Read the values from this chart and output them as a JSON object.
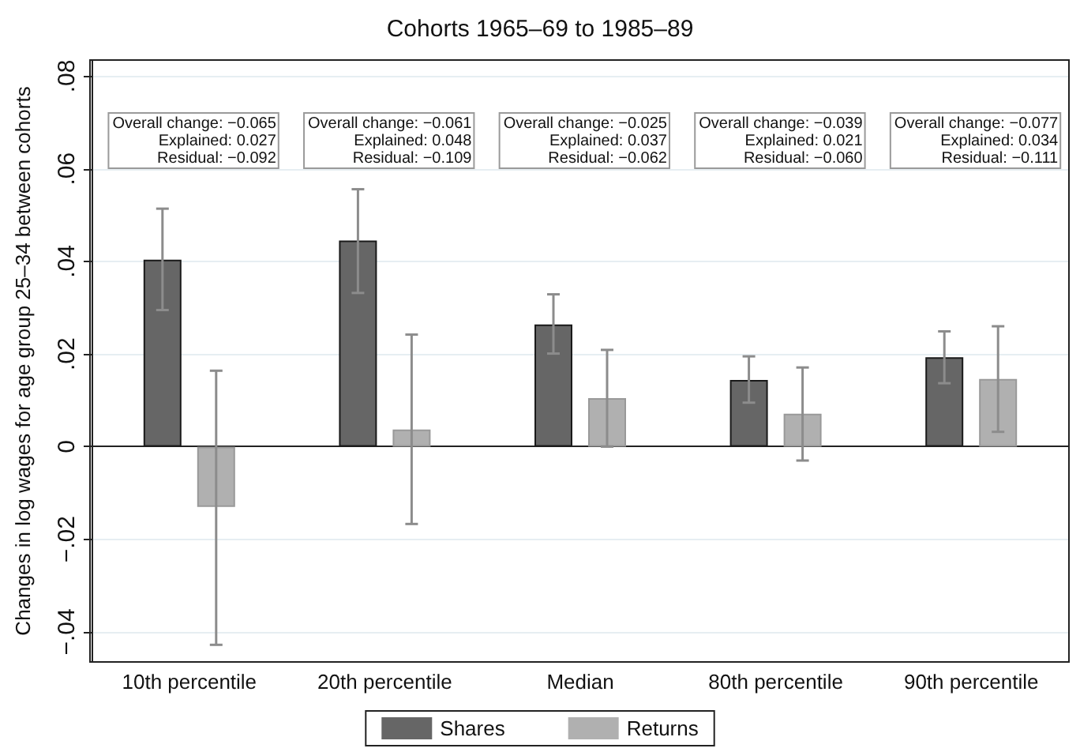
{
  "chart_data": {
    "type": "bar",
    "title": "Cohorts 1965–69 to 1985–89",
    "ylabel": "Changes in log wages for age group 25–34 between cohorts",
    "categories": [
      "10th percentile",
      "20th percentile",
      "Median",
      "80th percentile",
      "90th percentile"
    ],
    "series": [
      {
        "name": "Shares",
        "color": "#666666",
        "values": [
          0.0404,
          0.0445,
          0.0264,
          0.0144,
          0.0193
        ],
        "errors": [
          [
            0.0295,
            0.0514
          ],
          [
            0.0332,
            0.0556
          ],
          [
            0.0201,
            0.0329
          ],
          [
            0.0095,
            0.0195
          ],
          [
            0.0137,
            0.0249
          ]
        ]
      },
      {
        "name": "Returns",
        "color": "#b0b0b0",
        "values": [
          -0.013,
          0.0037,
          0.0105,
          0.0071,
          0.0146
        ],
        "errors": [
          [
            -0.0428,
            0.0164
          ],
          [
            -0.0167,
            0.0242
          ],
          [
            0.0,
            0.0209
          ],
          [
            -0.003,
            0.0171
          ],
          [
            0.0032,
            0.026
          ]
        ]
      }
    ],
    "ylim": [
      -0.0465,
      0.0835
    ],
    "yticks": [
      {
        "value": -0.04,
        "label": "−.04"
      },
      {
        "value": -0.02,
        "label": "−.02"
      },
      0,
      {
        "value": 0.02,
        "label": ".02"
      },
      {
        "value": 0.04,
        "label": ".04"
      },
      {
        "value": 0.06,
        "label": ".06"
      },
      {
        "value": 0.08,
        "label": ".08"
      }
    ],
    "grid": "y",
    "legend": "bottom",
    "annotations": [
      "Overall change: −0.065\nExplained: 0.027\nResidual: −0.092",
      "Overall change: −0.061\nExplained: 0.048\nResidual: −0.109",
      "Overall change: −0.025\nExplained: 0.037\nResidual: −0.062",
      "Overall change: −0.039\nExplained: 0.021\nResidual: −0.060",
      "Overall change: −0.077\nExplained: 0.034\nResidual: −0.111"
    ]
  }
}
